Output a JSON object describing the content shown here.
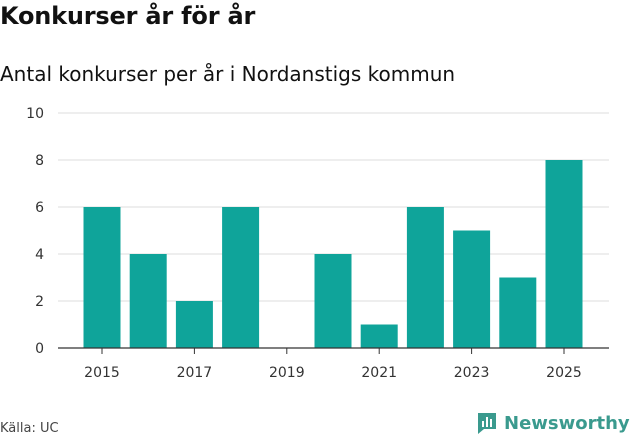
{
  "header": {
    "title": "Konkurser år för år",
    "subtitle": "Antal konkurser per år i Nordanstigs kommun"
  },
  "footer": {
    "source": "Källa: UC",
    "brand_name": "Newsworthy",
    "brand_icon": "bar-chart-icon"
  },
  "colors": {
    "bar": "#0fa49a",
    "grid": "#dddddd",
    "axis": "#333333",
    "brand": "#3a9a8e"
  },
  "chart_data": {
    "type": "bar",
    "categories": [
      2015,
      2016,
      2017,
      2018,
      2019,
      2020,
      2021,
      2022,
      2023,
      2024,
      2025
    ],
    "values": [
      6,
      4,
      2,
      6,
      0,
      4,
      1,
      6,
      5,
      3,
      8
    ],
    "x_ticks": [
      "2015",
      "2017",
      "2019",
      "2021",
      "2023",
      "2025"
    ],
    "y_ticks": [
      "0",
      "2",
      "4",
      "6",
      "8",
      "10"
    ],
    "ylim": [
      0,
      10
    ],
    "grid": true,
    "legend": "none"
  }
}
